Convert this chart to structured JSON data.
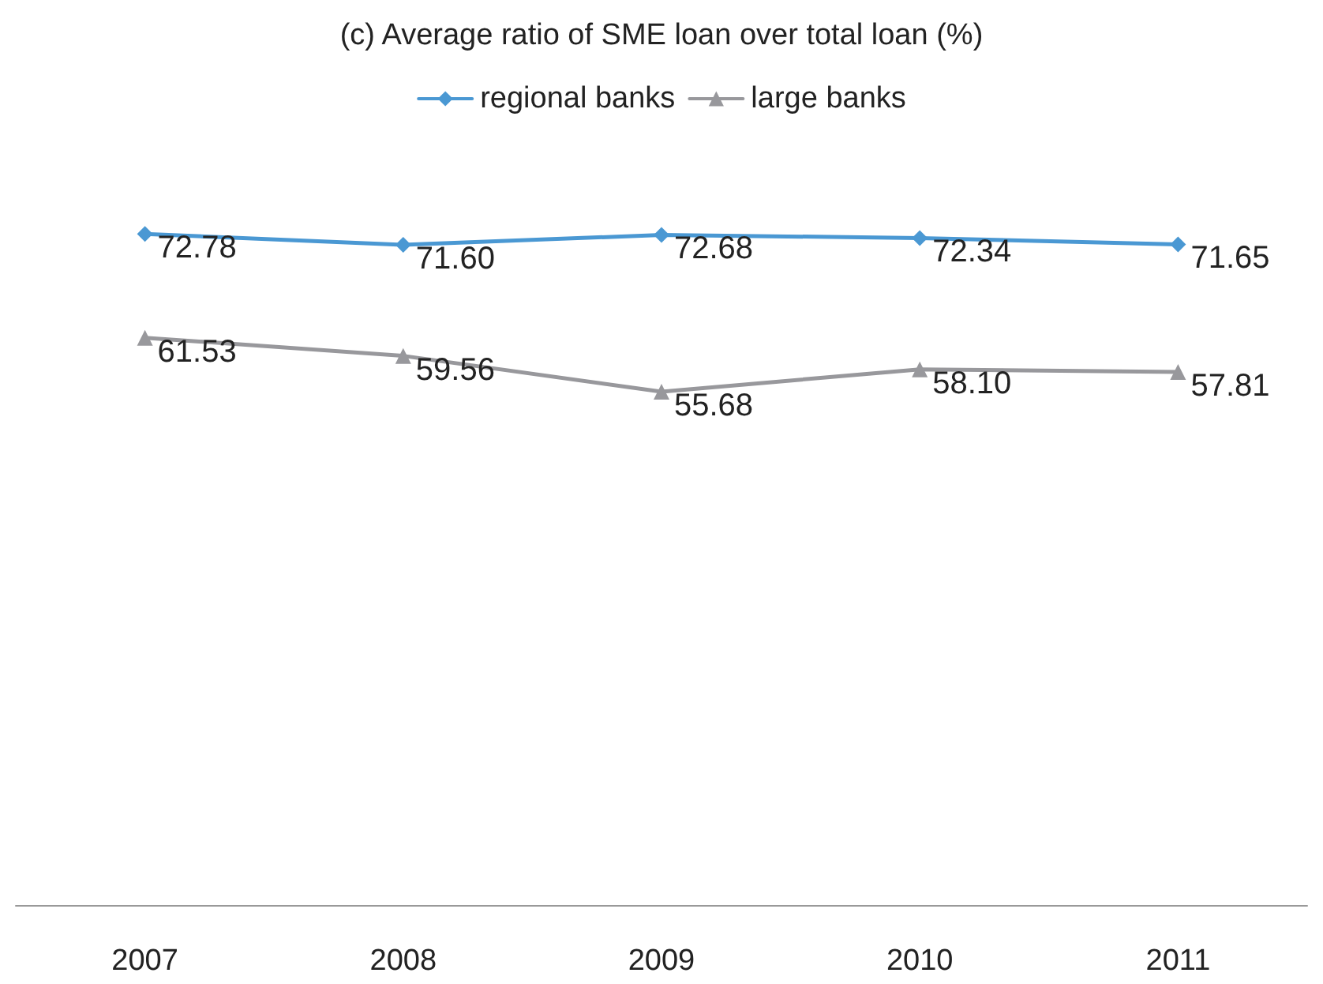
{
  "chart_data": {
    "type": "line",
    "title": "(c) Average ratio of SME loan over total loan (%)",
    "categories": [
      "2007",
      "2008",
      "2009",
      "2010",
      "2011"
    ],
    "series": [
      {
        "name": "regional banks",
        "color": "#4a98d3",
        "marker": "diamond",
        "values": [
          72.78,
          71.6,
          72.68,
          72.34,
          71.65
        ],
        "value_labels": [
          "72.78",
          "71.60",
          "72.68",
          "72.34",
          "71.65"
        ]
      },
      {
        "name": "large banks",
        "color": "#98989c",
        "marker": "triangle",
        "values": [
          61.53,
          59.56,
          55.68,
          58.1,
          57.81
        ],
        "value_labels": [
          "61.53",
          "59.56",
          "55.68",
          "58.10",
          "57.81"
        ]
      }
    ],
    "legend": "top",
    "grid": false,
    "tick_labels": "x"
  }
}
